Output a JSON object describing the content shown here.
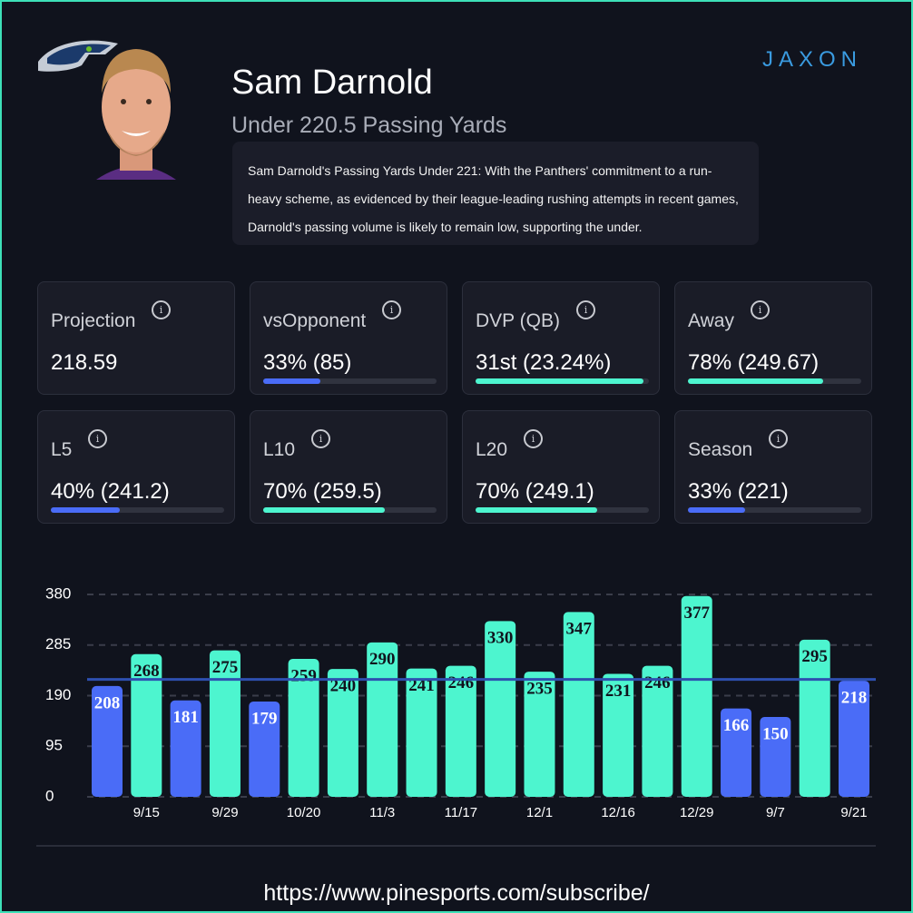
{
  "header": {
    "title": "Sam Darnold",
    "subtitle": "Under 220.5 Passing Yards",
    "description": "Sam Darnold's Passing Yards Under 221: With the Panthers' commitment to a run-heavy scheme, as evidenced by their league-leading rushing attempts in recent games, Darnold's passing volume is likely to remain low, supporting the under.",
    "brand": "JAXON"
  },
  "cards": [
    {
      "label": "Projection",
      "value": "218.59"
    },
    {
      "label": "vsOpponent",
      "value": "33% (85)",
      "progress": 33,
      "color": "#4a6cf7"
    },
    {
      "label": "DVP (QB)",
      "value": "31st (23.24%)",
      "progress": 97,
      "color": "#4df5cf"
    },
    {
      "label": "Away",
      "value": "78% (249.67)",
      "progress": 78,
      "color": "#4df5cf"
    },
    {
      "label": "L5",
      "value": "40% (241.2)",
      "progress": 40,
      "color": "#4a6cf7"
    },
    {
      "label": "L10",
      "value": "70% (259.5)",
      "progress": 70,
      "color": "#4df5cf"
    },
    {
      "label": "L20",
      "value": "70% (249.1)",
      "progress": 70,
      "color": "#4df5cf"
    },
    {
      "label": "Season",
      "value": "33% (221)",
      "progress": 33,
      "color": "#4a6cf7"
    }
  ],
  "chart_data": {
    "type": "bar",
    "categories": [
      null,
      "9/15",
      null,
      "9/29",
      null,
      "10/20",
      null,
      "11/3",
      null,
      "11/17",
      null,
      "12/1",
      null,
      "12/16",
      null,
      "12/29",
      null,
      "9/7",
      null,
      "9/21"
    ],
    "values": [
      208,
      268,
      181,
      275,
      179,
      259,
      240,
      290,
      241,
      246,
      330,
      235,
      347,
      231,
      246,
      377,
      166,
      150,
      295,
      218
    ],
    "colors": [
      "#4a6cf7",
      "#4df5cf",
      "#4a6cf7",
      "#4df5cf",
      "#4a6cf7",
      "#4df5cf",
      "#4df5cf",
      "#4df5cf",
      "#4df5cf",
      "#4df5cf",
      "#4df5cf",
      "#4df5cf",
      "#4df5cf",
      "#4df5cf",
      "#4df5cf",
      "#4df5cf",
      "#4a6cf7",
      "#4a6cf7",
      "#4df5cf",
      "#4a6cf7"
    ],
    "line": 220.5,
    "line_color": "#2e50b0",
    "ylim": [
      0,
      380
    ],
    "yticks": [
      0,
      95,
      190,
      285,
      380
    ],
    "grid": true
  },
  "footer": {
    "url": "https://www.pinesports.com/subscribe/"
  }
}
